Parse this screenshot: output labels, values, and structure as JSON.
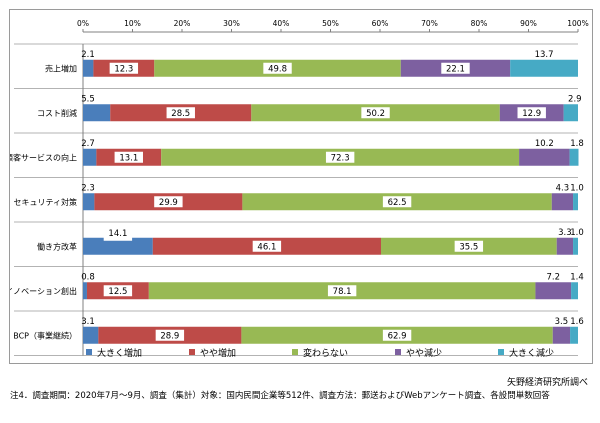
{
  "chart_data": {
    "type": "bar",
    "orientation": "horizontal",
    "stacked": true,
    "unit": "%",
    "xlim": [
      0,
      100
    ],
    "x_ticks": [
      "0%",
      "10%",
      "20%",
      "30%",
      "40%",
      "50%",
      "60%",
      "70%",
      "80%",
      "90%",
      "100%"
    ],
    "categories": [
      "売上増加",
      "コスト削減",
      "顧客サービスの向上",
      "セキュリティ対策",
      "働き方改革",
      "イノベーション創出",
      "BCP（事業継続）"
    ],
    "series": [
      {
        "name": "大きく増加",
        "color": "#4a7ebb",
        "values": [
          2.1,
          5.5,
          2.7,
          2.3,
          14.1,
          0.8,
          3.1
        ]
      },
      {
        "name": "やや増加",
        "color": "#be4b48",
        "values": [
          12.3,
          28.5,
          13.1,
          29.9,
          46.1,
          12.5,
          28.9
        ]
      },
      {
        "name": "変わらない",
        "color": "#98b954",
        "values": [
          49.8,
          50.2,
          72.3,
          62.5,
          35.5,
          78.1,
          62.9
        ]
      },
      {
        "name": "やや減少",
        "color": "#7d60a0",
        "values": [
          22.1,
          12.9,
          10.2,
          4.3,
          3.3,
          7.2,
          3.5
        ]
      },
      {
        "name": "大きく減少",
        "color": "#46aac5",
        "values": [
          13.7,
          2.9,
          1.8,
          1.0,
          1.0,
          1.4,
          1.6
        ]
      }
    ],
    "grid": false,
    "legend_position": "bottom"
  },
  "footnote": "注4．調査期間：2020年7月～9月、調査（集計）対象：国内民間企業等512件、調査方法：郵送およびWebアンケート調査、各設問単数回答",
  "source": "矢野経済研究所調べ"
}
